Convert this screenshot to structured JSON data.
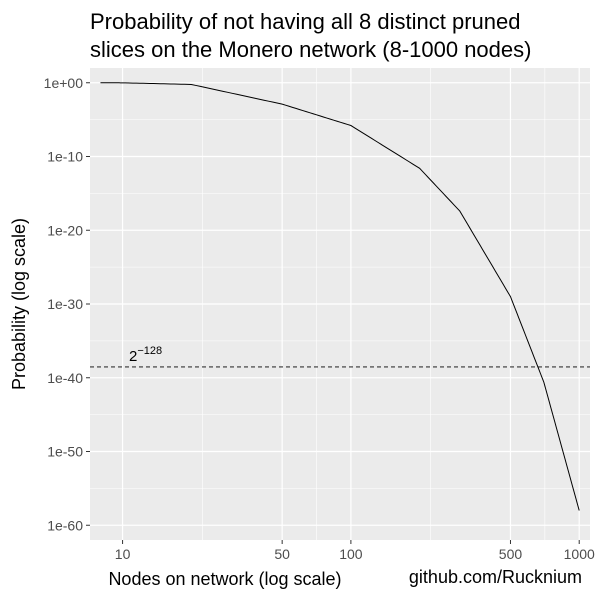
{
  "chart_data": {
    "type": "line",
    "title_lines": [
      "Probability of not having all 8 distinct pruned",
      "slices on the Monero network (8-1000 nodes)"
    ],
    "xlabel": "Nodes on network (log scale)",
    "ylabel": "Probability (log scale)",
    "caption": "github.com/Rucknium",
    "x_scale": "log",
    "y_scale": "log",
    "xlim": [
      8,
      1000
    ],
    "ylim_log10": [
      -62,
      2
    ],
    "x_ticks": [
      10,
      50,
      100,
      500,
      1000
    ],
    "x_tick_labels": [
      "10",
      "50",
      "100",
      "500",
      "1000"
    ],
    "y_ticks_log10": [
      0,
      -10,
      -20,
      -30,
      -40,
      -50,
      -60
    ],
    "y_tick_labels": [
      "1e+00",
      "1e-10",
      "1e-20",
      "1e-30",
      "1e-40",
      "1e-50",
      "1e-60"
    ],
    "grid": true,
    "series": [
      {
        "x": [
          8,
          10,
          20,
          50,
          100,
          200,
          300,
          500,
          700,
          1000
        ],
        "log10_y": [
          0,
          -0.01,
          -0.23,
          -2.9,
          -5.8,
          -11.6,
          -17.4,
          -29.0,
          -40.6,
          -58.0
        ]
      }
    ],
    "reference_line": {
      "log10_y": -38.53,
      "style": "dashed",
      "label_base": "2",
      "label_exponent": "−128",
      "label_x": 11
    },
    "colors": {
      "panel_background": "#ebebeb",
      "grid": "#ffffff",
      "line": "#000000"
    }
  }
}
